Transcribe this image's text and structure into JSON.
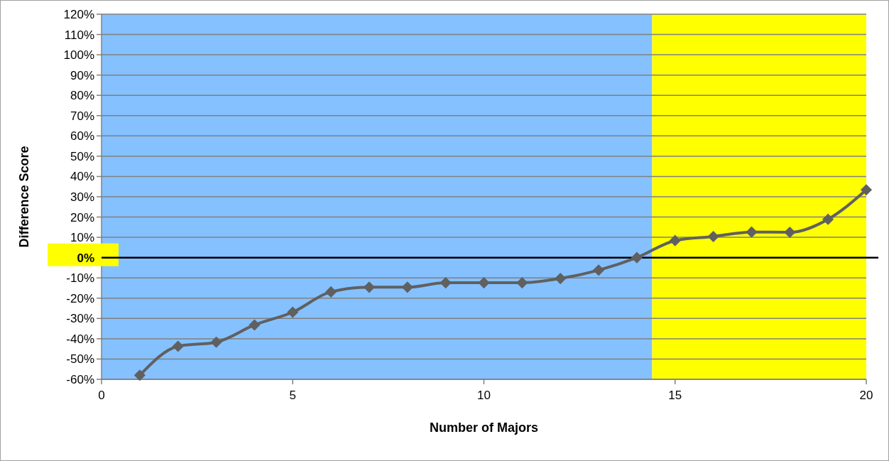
{
  "chart_data": {
    "type": "line",
    "xlabel": "Number of Majors",
    "ylabel": "Difference Score",
    "x": [
      1,
      2,
      3,
      4,
      5,
      6,
      7,
      8,
      9,
      10,
      11,
      12,
      13,
      14,
      15,
      16,
      17,
      18,
      19,
      20
    ],
    "series": [
      {
        "color": "#606060",
        "values": [
          -58,
          -43.7,
          -41.7,
          -33.2,
          -26.9,
          -16.9,
          -14.6,
          -14.6,
          -12.4,
          -12.4,
          -12.4,
          -10.3,
          -6.2,
          0,
          8.4,
          10.4,
          12.6,
          12.5,
          18.9,
          33.4
        ]
      }
    ],
    "xlim": [
      0,
      20
    ],
    "xticks": [
      0,
      5,
      10,
      15,
      20
    ],
    "ylim": [
      -60,
      120
    ],
    "yticks": [
      {
        "value": -60,
        "label": "-60%"
      },
      {
        "value": -50,
        "label": "-50%"
      },
      {
        "value": -40,
        "label": "-40%"
      },
      {
        "value": -30,
        "label": "-30%"
      },
      {
        "value": -20,
        "label": "-20%"
      },
      {
        "value": -10,
        "label": "-10%"
      },
      {
        "value": 0,
        "label": "0%"
      },
      {
        "value": 10,
        "label": "10%"
      },
      {
        "value": 20,
        "label": "20%"
      },
      {
        "value": 30,
        "label": "30%"
      },
      {
        "value": 40,
        "label": "40%"
      },
      {
        "value": 50,
        "label": "50%"
      },
      {
        "value": 60,
        "label": "60%"
      },
      {
        "value": 70,
        "label": "70%"
      },
      {
        "value": 80,
        "label": "80%"
      },
      {
        "value": 90,
        "label": "90%"
      },
      {
        "value": 100,
        "label": "100%"
      },
      {
        "value": 110,
        "label": "110%"
      },
      {
        "value": 120,
        "label": "120%"
      }
    ],
    "bands": [
      {
        "axis": "x",
        "from": 0,
        "to": 14.4,
        "color": "#85c1ff"
      },
      {
        "axis": "x",
        "from": 14.4,
        "to": 20,
        "color": "#ffff00"
      }
    ],
    "ref_lines": [
      {
        "axis": "y",
        "value": 0,
        "color": "#000000"
      }
    ],
    "grid": "y",
    "marker": "diamond",
    "line_style": "solid"
  }
}
